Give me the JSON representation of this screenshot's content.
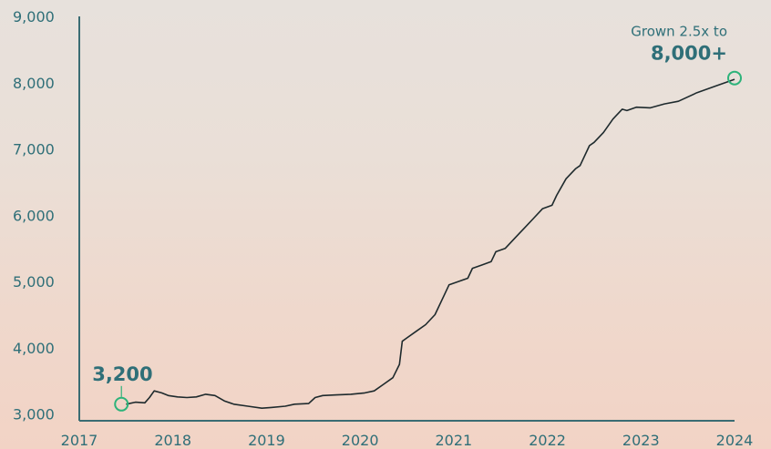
{
  "chart_data": {
    "type": "line",
    "title": "",
    "xlabel": "",
    "ylabel": "",
    "xlim": [
      2017,
      2024
    ],
    "ylim": [
      2900,
      9000
    ],
    "x_ticks": [
      "2017",
      "2018",
      "2019",
      "2020",
      "2021",
      "2022",
      "2023",
      "2024"
    ],
    "y_ticks": [
      "3,000",
      "4,000",
      "5,000",
      "6,000",
      "7,000",
      "8,000",
      "9,000"
    ],
    "grid": false,
    "line_color": "#1e2a2d",
    "accent_color": "#2db37a",
    "text_color": "#2f6f78",
    "series": [
      {
        "x": [
          2017.5,
          2017.6,
          2017.7,
          2017.75,
          2017.8,
          2017.88,
          2017.95,
          2018.05,
          2018.15,
          2018.25,
          2018.35,
          2018.45,
          2018.55,
          2018.65,
          2018.8,
          2018.95,
          2019.05,
          2019.2,
          2019.3,
          2019.45,
          2019.52,
          2019.6,
          2019.75,
          2019.9,
          2020.05,
          2020.15,
          2020.25,
          2020.35,
          2020.42,
          2020.45,
          2020.5,
          2020.6,
          2020.7,
          2020.8,
          2020.9,
          2020.95,
          2021.05,
          2021.15,
          2021.2,
          2021.3,
          2021.4,
          2021.45,
          2021.55,
          2021.65,
          2021.75,
          2021.85,
          2021.95,
          2022.05,
          2022.1,
          2022.2,
          2022.3,
          2022.35,
          2022.45,
          2022.5,
          2022.6,
          2022.7,
          2022.8,
          2022.85,
          2022.95,
          2023.1,
          2023.25,
          2023.4,
          2023.6,
          2023.8,
          2024.0
        ],
        "values": [
          3150,
          3180,
          3170,
          3250,
          3350,
          3320,
          3280,
          3260,
          3250,
          3260,
          3300,
          3280,
          3200,
          3150,
          3120,
          3090,
          3100,
          3120,
          3150,
          3160,
          3250,
          3280,
          3290,
          3300,
          3320,
          3350,
          3450,
          3550,
          3750,
          4100,
          4150,
          4250,
          4350,
          4500,
          4800,
          4950,
          5000,
          5050,
          5200,
          5250,
          5300,
          5450,
          5500,
          5650,
          5800,
          5950,
          6100,
          6150,
          6300,
          6550,
          6700,
          6750,
          7050,
          7100,
          7250,
          7450,
          7600,
          7580,
          7630,
          7620,
          7680,
          7720,
          7850,
          7950,
          8050
        ]
      }
    ],
    "annotations": {
      "start_label": "3,200",
      "start_point": [
        2017.45,
        3150
      ],
      "end_caption": "Grown 2.5x to",
      "end_label": "8,000+",
      "end_point": [
        2024.0,
        8070
      ]
    }
  }
}
